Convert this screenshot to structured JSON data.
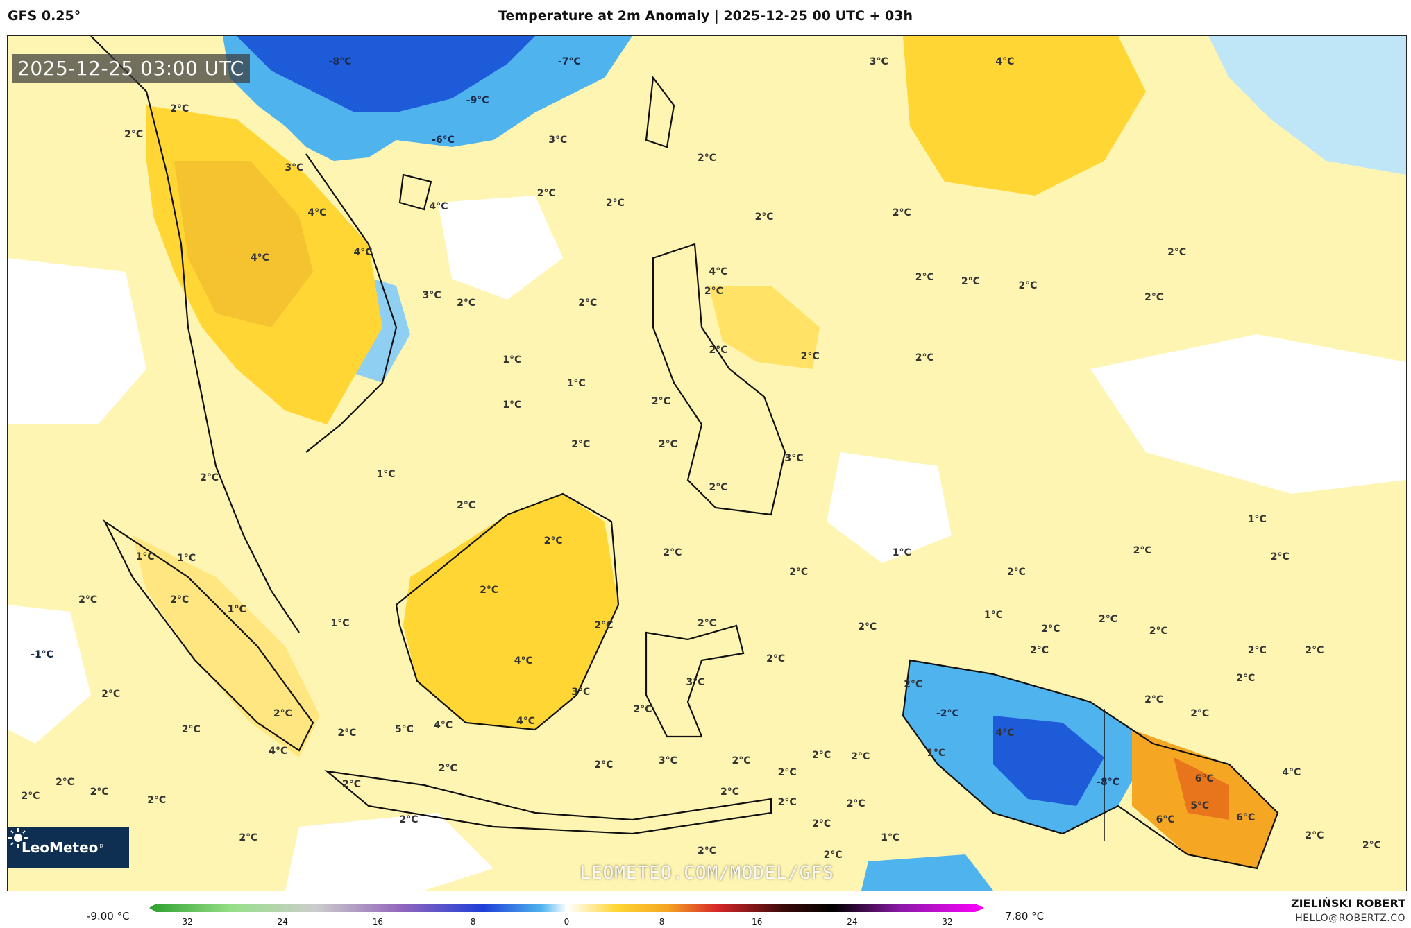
{
  "header": {
    "model": "GFS 0.25°",
    "title": "Temperature at 2m Anomaly | 2025-12-25 00 UTC + 03h"
  },
  "map": {
    "valid_time": "2025-12-25 03:00 UTC",
    "watermark": "LEOMETEO.COM/MODEL/GFS",
    "logo_text": "LeoMeteo",
    "logo_suffix": "jp",
    "background_color": "#fff5b3",
    "colors": {
      "cold_strong": "#1e5bd8",
      "cold": "#4fb3ee",
      "cool": "#bfe6f7",
      "neutral": "#ffffff",
      "warm_light": "#fff3a8",
      "warm": "#ffd633",
      "hot": "#f5a623",
      "very_hot": "#e8741c"
    },
    "labels": [
      {
        "text": "-8°C",
        "lon": 105.5,
        "lat": 30.2
      },
      {
        "text": "-7°C",
        "lon": 115.5,
        "lat": 30.2
      },
      {
        "text": "-9°C",
        "lon": 111.5,
        "lat": 28.2
      },
      {
        "text": "-6°C",
        "lon": 110.0,
        "lat": 26.2
      },
      {
        "text": "3°C",
        "lon": 129.0,
        "lat": 30.2
      },
      {
        "text": "4°C",
        "lon": 134.5,
        "lat": 30.2
      },
      {
        "text": "2°C",
        "lon": 98.5,
        "lat": 27.8
      },
      {
        "text": "2°C",
        "lon": 96.5,
        "lat": 26.5
      },
      {
        "text": "3°C",
        "lon": 103.5,
        "lat": 24.8
      },
      {
        "text": "4°C",
        "lon": 104.5,
        "lat": 22.5
      },
      {
        "text": "4°C",
        "lon": 102.0,
        "lat": 20.2
      },
      {
        "text": "4°C",
        "lon": 106.5,
        "lat": 20.5
      },
      {
        "text": "3°C",
        "lon": 109.5,
        "lat": 18.3
      },
      {
        "text": "4°C",
        "lon": 109.8,
        "lat": 22.8
      },
      {
        "text": "3°C",
        "lon": 115.0,
        "lat": 26.2
      },
      {
        "text": "2°C",
        "lon": 114.5,
        "lat": 23.5
      },
      {
        "text": "2°C",
        "lon": 121.5,
        "lat": 25.3
      },
      {
        "text": "2°C",
        "lon": 117.5,
        "lat": 23.0
      },
      {
        "text": "2°C",
        "lon": 124.0,
        "lat": 22.3
      },
      {
        "text": "2°C",
        "lon": 130.0,
        "lat": 22.5
      },
      {
        "text": "2°C",
        "lon": 142.0,
        "lat": 20.5
      },
      {
        "text": "2°C",
        "lon": 133.0,
        "lat": 19.0
      },
      {
        "text": "2°C",
        "lon": 135.5,
        "lat": 18.8
      },
      {
        "text": "2°C",
        "lon": 141.0,
        "lat": 18.2
      },
      {
        "text": "2°C",
        "lon": 131.0,
        "lat": 19.2
      },
      {
        "text": "2°C",
        "lon": 111.0,
        "lat": 17.9
      },
      {
        "text": "2°C",
        "lon": 116.3,
        "lat": 17.9
      },
      {
        "text": "2°C",
        "lon": 121.8,
        "lat": 18.5
      },
      {
        "text": "2°C",
        "lon": 122.0,
        "lat": 15.5
      },
      {
        "text": "2°C",
        "lon": 126.0,
        "lat": 15.2
      },
      {
        "text": "2°C",
        "lon": 131.0,
        "lat": 15.1
      },
      {
        "text": "1°C",
        "lon": 113.0,
        "lat": 15.0
      },
      {
        "text": "1°C",
        "lon": 115.8,
        "lat": 13.8
      },
      {
        "text": "1°C",
        "lon": 113.0,
        "lat": 12.7
      },
      {
        "text": "2°C",
        "lon": 116.0,
        "lat": 10.7
      },
      {
        "text": "2°C",
        "lon": 119.8,
        "lat": 10.7
      },
      {
        "text": "2°C",
        "lon": 119.5,
        "lat": 12.9
      },
      {
        "text": "1°C",
        "lon": 107.5,
        "lat": 9.2
      },
      {
        "text": "2°C",
        "lon": 99.8,
        "lat": 9.0
      },
      {
        "text": "2°C",
        "lon": 111.0,
        "lat": 7.6
      },
      {
        "text": "2°C",
        "lon": 114.8,
        "lat": 5.8
      },
      {
        "text": "2°C",
        "lon": 120.0,
        "lat": 5.2
      },
      {
        "text": "1°C",
        "lon": 97.0,
        "lat": 5.0
      },
      {
        "text": "1°C",
        "lon": 98.8,
        "lat": 4.9
      },
      {
        "text": "2°C",
        "lon": 94.5,
        "lat": 2.8
      },
      {
        "text": "2°C",
        "lon": 98.5,
        "lat": 2.8
      },
      {
        "text": "1°C",
        "lon": 101.0,
        "lat": 2.3
      },
      {
        "text": "1°C",
        "lon": 105.5,
        "lat": 1.6
      },
      {
        "text": "2°C",
        "lon": 112.0,
        "lat": 3.3
      },
      {
        "text": "2°C",
        "lon": 121.5,
        "lat": 1.6
      },
      {
        "text": "2°C",
        "lon": 117.0,
        "lat": 1.5
      },
      {
        "text": "4°C",
        "lon": 113.5,
        "lat": -0.3
      },
      {
        "text": "3°C",
        "lon": 116.0,
        "lat": -1.9
      },
      {
        "text": "4°C",
        "lon": 110.0,
        "lat": -3.6
      },
      {
        "text": "4°C",
        "lon": 113.6,
        "lat": -3.4
      },
      {
        "text": "2°C",
        "lon": 118.7,
        "lat": -2.8
      },
      {
        "text": "3°C",
        "lon": 121.0,
        "lat": -1.4
      },
      {
        "text": "2°C",
        "lon": 124.5,
        "lat": -0.2
      },
      {
        "text": "2°C",
        "lon": 128.5,
        "lat": 1.4
      },
      {
        "text": "2°C",
        "lon": 125.5,
        "lat": 4.2
      },
      {
        "text": "1°C",
        "lon": 130.0,
        "lat": 5.2
      },
      {
        "text": "2°C",
        "lon": 135.0,
        "lat": 4.2
      },
      {
        "text": "2°C",
        "lon": 140.5,
        "lat": 5.3
      },
      {
        "text": "1°C",
        "lon": 145.5,
        "lat": 6.9
      },
      {
        "text": "2°C",
        "lon": 146.5,
        "lat": 5.0
      },
      {
        "text": "1°C",
        "lon": 134.0,
        "lat": 2.0
      },
      {
        "text": "2°C",
        "lon": 136.5,
        "lat": 1.3
      },
      {
        "text": "2°C",
        "lon": 139.0,
        "lat": 1.8
      },
      {
        "text": "2°C",
        "lon": 141.2,
        "lat": 1.2
      },
      {
        "text": "2°C",
        "lon": 145.5,
        "lat": 0.2
      },
      {
        "text": "2°C",
        "lon": 148.0,
        "lat": 0.2
      },
      {
        "text": "2°C",
        "lon": 145.0,
        "lat": -1.2
      },
      {
        "text": "2°C",
        "lon": 130.5,
        "lat": -1.5
      },
      {
        "text": "2°C",
        "lon": 141.0,
        "lat": -2.3
      },
      {
        "text": "2°C",
        "lon": 143.0,
        "lat": -3.0
      },
      {
        "text": "-2°C",
        "lon": 132.0,
        "lat": -3.0
      },
      {
        "text": "1°C",
        "lon": 131.5,
        "lat": -5.0
      },
      {
        "text": "-8°C",
        "lon": 139.0,
        "lat": -6.5
      },
      {
        "text": "6°C",
        "lon": 143.2,
        "lat": -6.3
      },
      {
        "text": "5°C",
        "lon": 143.0,
        "lat": -7.7
      },
      {
        "text": "6°C",
        "lon": 145.0,
        "lat": -8.3
      },
      {
        "text": "6°C",
        "lon": 141.5,
        "lat": -8.4
      },
      {
        "text": "4°C",
        "lon": 147.0,
        "lat": -6.0
      },
      {
        "text": "2°C",
        "lon": 148.0,
        "lat": -9.2
      },
      {
        "text": "2°C",
        "lon": 150.5,
        "lat": -9.7
      },
      {
        "text": "1°C",
        "lon": 129.5,
        "lat": -9.3
      },
      {
        "text": "2°C",
        "lon": 125.0,
        "lat": -6.0
      },
      {
        "text": "2°C",
        "lon": 125.0,
        "lat": -7.5
      },
      {
        "text": "2°C",
        "lon": 123.0,
        "lat": -5.4
      },
      {
        "text": "2°C",
        "lon": 126.5,
        "lat": -5.1
      },
      {
        "text": "2°C",
        "lon": 128.2,
        "lat": -5.2
      },
      {
        "text": "2°C",
        "lon": 128.0,
        "lat": -7.6
      },
      {
        "text": "2°C",
        "lon": 126.5,
        "lat": -8.6
      },
      {
        "text": "2°C",
        "lon": 127.0,
        "lat": -10.2
      },
      {
        "text": "2°C",
        "lon": 121.5,
        "lat": -10.0
      },
      {
        "text": "2°C",
        "lon": 117.0,
        "lat": -5.6
      },
      {
        "text": "3°C",
        "lon": 119.8,
        "lat": -5.4
      },
      {
        "text": "2°C",
        "lon": 110.2,
        "lat": -5.8
      },
      {
        "text": "2°C",
        "lon": 106.0,
        "lat": -6.6
      },
      {
        "text": "2°C",
        "lon": 108.5,
        "lat": -8.4
      },
      {
        "text": "2°C",
        "lon": 122.5,
        "lat": -7.0
      },
      {
        "text": "2°C",
        "lon": 103.0,
        "lat": -3.0
      },
      {
        "text": "2°C",
        "lon": 105.8,
        "lat": -4.0
      },
      {
        "text": "4°C",
        "lon": 102.8,
        "lat": -4.9
      },
      {
        "text": "5°C",
        "lon": 108.3,
        "lat": -3.8
      },
      {
        "text": "2°C",
        "lon": 99.0,
        "lat": -3.8
      },
      {
        "text": "2°C",
        "lon": 95.5,
        "lat": -2.0
      },
      {
        "text": "-1°C",
        "lon": 92.5,
        "lat": 0.0
      },
      {
        "text": "2°C",
        "lon": 93.5,
        "lat": -6.5
      },
      {
        "text": "2°C",
        "lon": 95.0,
        "lat": -7.0
      },
      {
        "text": "2°C",
        "lon": 97.5,
        "lat": -7.4
      },
      {
        "text": "2°C",
        "lon": 101.5,
        "lat": -9.3
      },
      {
        "text": "2°C",
        "lon": 92.0,
        "lat": -7.2
      },
      {
        "text": "3°C",
        "lon": 125.3,
        "lat": 10.0
      },
      {
        "text": "2°C",
        "lon": 122.0,
        "lat": 8.5
      },
      {
        "text": "4°C",
        "lon": 122.0,
        "lat": 19.5
      },
      {
        "text": "4°C",
        "lon": 134.5,
        "lat": -4.0
      },
      {
        "text": "2°C",
        "lon": 136.0,
        "lat": 0.2
      }
    ]
  },
  "colorbar": {
    "min_label": "-9.00 °C",
    "max_label": "7.80 °C",
    "ticks": [
      "-32",
      "-24",
      "-16",
      "-8",
      "0",
      "8",
      "16",
      "24",
      "32"
    ]
  },
  "credits": {
    "author": "ZIELIŃSKI ROBERT",
    "email": "HELLO@ROBERTZ.CO"
  }
}
